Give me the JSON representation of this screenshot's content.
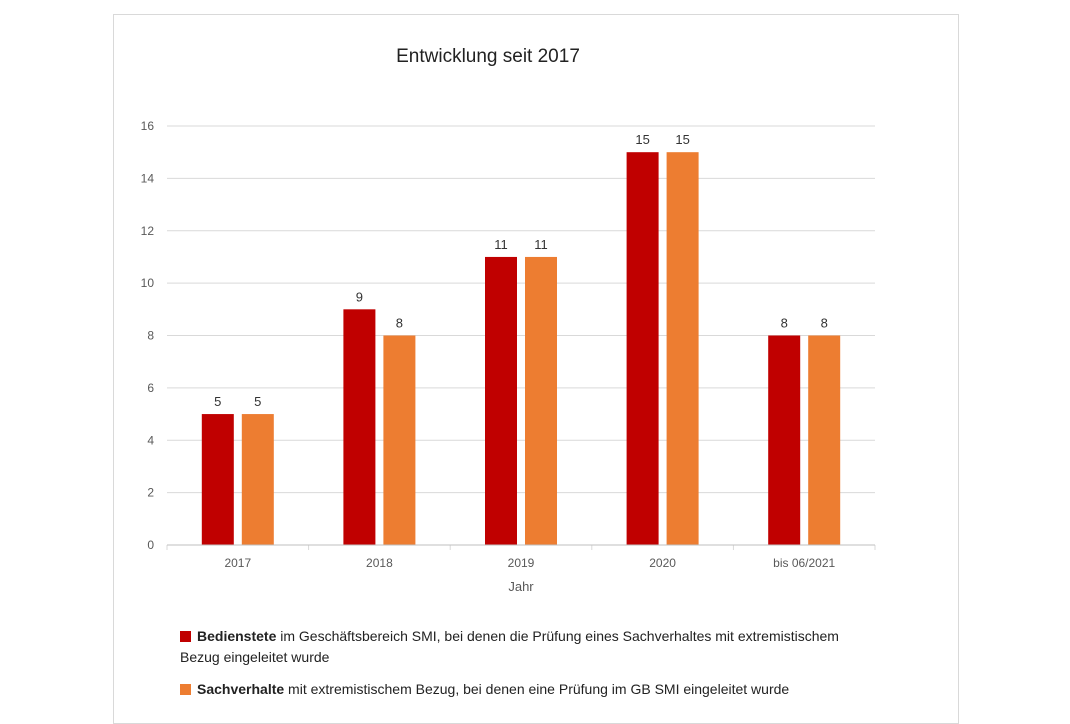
{
  "chart_data": {
    "type": "bar",
    "title": "Entwicklung seit 2017",
    "xlabel": "Jahr",
    "ylabel": "",
    "categories": [
      "2017",
      "2018",
      "2019",
      "2020",
      "bis 06/2021"
    ],
    "ylim": [
      0,
      16
    ],
    "yticks": [
      0,
      2,
      4,
      6,
      8,
      10,
      12,
      14,
      16
    ],
    "grid": true,
    "legend_position": "bottom",
    "series": [
      {
        "name": "Bedienstete",
        "name_rest": " im Geschäftsbereich SMI, bei denen die Prüfung eines Sachverhaltes mit extremistischem Bezug eingeleitet wurde",
        "color": "#C00000",
        "values": [
          5,
          9,
          11,
          15,
          8
        ]
      },
      {
        "name": "Sachverhalte",
        "name_rest": " mit extremistischem Bezug, bei denen eine Prüfung im GB SMI eingeleitet wurde",
        "color": "#ED7D31",
        "values": [
          5,
          8,
          11,
          15,
          8
        ]
      }
    ]
  }
}
